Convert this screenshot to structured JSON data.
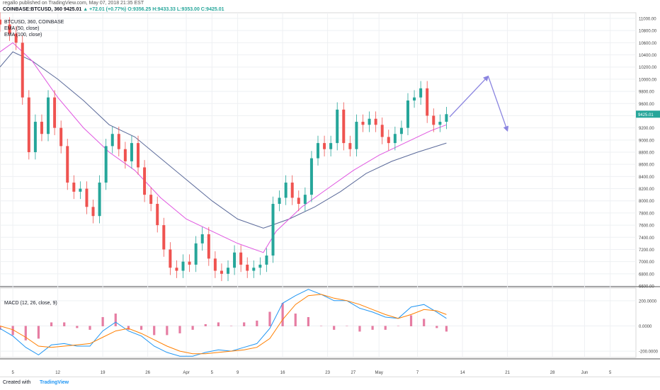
{
  "header": {
    "publisher": "regallo published on TradingView.com, May 07, 2018 21:35 EST",
    "symbol": "COINBASE:BTCUSD, 360",
    "last": "9425.01",
    "change": "▲ +72.01 (+0.77%)",
    "o": "O:9356.25",
    "h": "H:9433.33",
    "l": "L:9353.00",
    "c": "C:9425.01"
  },
  "legend": {
    "symbol": "BTCUSD, 360, COINBASE",
    "ema50": "EMA (50, close)",
    "ema100": "EMA (100, close)",
    "macd": "MACD (12, 26, close, 9)"
  },
  "footer": {
    "created": "Created with",
    "brand": "TradingView"
  },
  "colors": {
    "up": "#26a69a",
    "down": "#ef5350",
    "ema50": "#e056e0",
    "ema100": "#5b6a9a",
    "macd": "#2196f3",
    "signal": "#ff7f00",
    "hist": "#e05c8c",
    "arrow": "#8a84e0"
  },
  "chart_data": {
    "type": "candlestick",
    "price_axis": {
      "min": 6600,
      "max": 11000,
      "ticks": [
        "6600.00",
        "6800.00",
        "7000.00",
        "7200.00",
        "7400.00",
        "7600.00",
        "7800.00",
        "8000.00",
        "8200.00",
        "8400.00",
        "8600.00",
        "8800.00",
        "9000.00",
        "9200.00",
        "9400.00",
        "9600.00",
        "9800.00",
        "10000.00",
        "10200.00",
        "10400.00",
        "10600.00",
        "10800.00",
        "11000.00"
      ]
    },
    "macd_axis": {
      "min": -250,
      "max": 300,
      "ticks": [
        "-200.0000",
        "0.0000",
        "200.0000"
      ]
    },
    "x_ticks": [
      {
        "label": "5",
        "day": 5
      },
      {
        "label": "12",
        "day": 12
      },
      {
        "label": "19",
        "day": 19
      },
      {
        "label": "26",
        "day": 26
      },
      {
        "label": "Apr",
        "day": 32
      },
      {
        "label": "5",
        "day": 36
      },
      {
        "label": "9",
        "day": 40
      },
      {
        "label": "16",
        "day": 47
      },
      {
        "label": "23",
        "day": 54
      },
      {
        "label": "27",
        "day": 58
      },
      {
        "label": "May",
        "day": 62
      },
      {
        "label": "7",
        "day": 68
      },
      {
        "label": "14",
        "day": 75
      },
      {
        "label": "21",
        "day": 82
      },
      {
        "label": "28",
        "day": 89
      },
      {
        "label": "Jun",
        "day": 94
      },
      {
        "label": "5",
        "day": 98
      }
    ],
    "x_range": [
      3,
      102
    ],
    "close": [
      {
        "day": 3,
        "value": 10900
      },
      {
        "day": 4.5,
        "value": 10750
      },
      {
        "day": 5.5,
        "value": 10600
      },
      {
        "day": 6.5,
        "value": 9700
      },
      {
        "day": 7.5,
        "value": 8800
      },
      {
        "day": 8.5,
        "value": 9300
      },
      {
        "day": 9.5,
        "value": 9100
      },
      {
        "day": 10.5,
        "value": 9700
      },
      {
        "day": 11.5,
        "value": 9200
      },
      {
        "day": 12.5,
        "value": 8900
      },
      {
        "day": 13.5,
        "value": 8300
      },
      {
        "day": 14.5,
        "value": 8150
      },
      {
        "day": 15.5,
        "value": 8200
      },
      {
        "day": 16.5,
        "value": 7900
      },
      {
        "day": 17.5,
        "value": 7750
      },
      {
        "day": 18.5,
        "value": 8300
      },
      {
        "day": 19.5,
        "value": 8900
      },
      {
        "day": 20.5,
        "value": 9100
      },
      {
        "day": 21.5,
        "value": 8850
      },
      {
        "day": 22.5,
        "value": 8650
      },
      {
        "day": 23.5,
        "value": 8950
      },
      {
        "day": 24.5,
        "value": 8550
      },
      {
        "day": 25.5,
        "value": 8100
      },
      {
        "day": 26.5,
        "value": 7950
      },
      {
        "day": 27.5,
        "value": 7600
      },
      {
        "day": 28.5,
        "value": 7200
      },
      {
        "day": 29.5,
        "value": 6900
      },
      {
        "day": 30.5,
        "value": 6850
      },
      {
        "day": 31.5,
        "value": 7000
      },
      {
        "day": 32.5,
        "value": 6950
      },
      {
        "day": 33.5,
        "value": 7300
      },
      {
        "day": 34.5,
        "value": 7450
      },
      {
        "day": 35.5,
        "value": 7050
      },
      {
        "day": 36.5,
        "value": 6850
      },
      {
        "day": 37.5,
        "value": 6800
      },
      {
        "day": 38.5,
        "value": 6900
      },
      {
        "day": 39.5,
        "value": 7150
      },
      {
        "day": 40.5,
        "value": 6950
      },
      {
        "day": 41.5,
        "value": 6850
      },
      {
        "day": 42.5,
        "value": 6900
      },
      {
        "day": 43.5,
        "value": 6950
      },
      {
        "day": 44.5,
        "value": 7100
      },
      {
        "day": 45.5,
        "value": 7950
      },
      {
        "day": 46.5,
        "value": 8050
      },
      {
        "day": 47.5,
        "value": 8300
      },
      {
        "day": 48.5,
        "value": 8050
      },
      {
        "day": 49.5,
        "value": 7950
      },
      {
        "day": 50.5,
        "value": 8100
      },
      {
        "day": 51.5,
        "value": 8700
      },
      {
        "day": 52.5,
        "value": 8950
      },
      {
        "day": 53.5,
        "value": 8850
      },
      {
        "day": 54.5,
        "value": 8950
      },
      {
        "day": 55.5,
        "value": 9500
      },
      {
        "day": 56.5,
        "value": 8950
      },
      {
        "day": 57.5,
        "value": 8850
      },
      {
        "day": 58.5,
        "value": 9300
      },
      {
        "day": 59.5,
        "value": 9250
      },
      {
        "day": 60.5,
        "value": 9350
      },
      {
        "day": 61.5,
        "value": 9250
      },
      {
        "day": 62.5,
        "value": 9050
      },
      {
        "day": 63.5,
        "value": 8950
      },
      {
        "day": 64.5,
        "value": 9100
      },
      {
        "day": 65.5,
        "value": 9200
      },
      {
        "day": 66.5,
        "value": 9650
      },
      {
        "day": 67.5,
        "value": 9700
      },
      {
        "day": 68.5,
        "value": 9850
      },
      {
        "day": 69.5,
        "value": 9400
      },
      {
        "day": 70.5,
        "value": 9250
      },
      {
        "day": 71.5,
        "value": 9300
      },
      {
        "day": 72.5,
        "value": 9425
      }
    ],
    "ema50": [
      {
        "day": 3,
        "value": 10450
      },
      {
        "day": 5,
        "value": 10600
      },
      {
        "day": 8,
        "value": 10300
      },
      {
        "day": 12,
        "value": 9700
      },
      {
        "day": 16,
        "value": 9200
      },
      {
        "day": 20,
        "value": 8800
      },
      {
        "day": 24,
        "value": 8500
      },
      {
        "day": 28,
        "value": 8050
      },
      {
        "day": 32,
        "value": 7700
      },
      {
        "day": 36,
        "value": 7500
      },
      {
        "day": 40,
        "value": 7300
      },
      {
        "day": 44,
        "value": 7150
      },
      {
        "day": 46,
        "value": 7500
      },
      {
        "day": 50,
        "value": 7900
      },
      {
        "day": 54,
        "value": 8200
      },
      {
        "day": 58,
        "value": 8500
      },
      {
        "day": 62,
        "value": 8750
      },
      {
        "day": 66,
        "value": 8950
      },
      {
        "day": 70,
        "value": 9150
      },
      {
        "day": 72.5,
        "value": 9250
      }
    ],
    "ema100": [
      {
        "day": 3,
        "value": 10200
      },
      {
        "day": 5,
        "value": 10450
      },
      {
        "day": 8,
        "value": 10300
      },
      {
        "day": 12,
        "value": 10000
      },
      {
        "day": 16,
        "value": 9650
      },
      {
        "day": 20,
        "value": 9250
      },
      {
        "day": 24,
        "value": 9050
      },
      {
        "day": 28,
        "value": 8700
      },
      {
        "day": 32,
        "value": 8350
      },
      {
        "day": 36,
        "value": 8000
      },
      {
        "day": 40,
        "value": 7700
      },
      {
        "day": 44,
        "value": 7550
      },
      {
        "day": 48,
        "value": 7700
      },
      {
        "day": 52,
        "value": 7900
      },
      {
        "day": 56,
        "value": 8150
      },
      {
        "day": 60,
        "value": 8450
      },
      {
        "day": 64,
        "value": 8650
      },
      {
        "day": 68,
        "value": 8800
      },
      {
        "day": 72.5,
        "value": 8950
      }
    ],
    "macd": [
      {
        "day": 3,
        "value": -20
      },
      {
        "day": 5,
        "value": -80
      },
      {
        "day": 7,
        "value": -170
      },
      {
        "day": 9,
        "value": -230
      },
      {
        "day": 11,
        "value": -150
      },
      {
        "day": 13,
        "value": -140
      },
      {
        "day": 15,
        "value": -160
      },
      {
        "day": 17,
        "value": -160
      },
      {
        "day": 19,
        "value": -40
      },
      {
        "day": 21,
        "value": 30
      },
      {
        "day": 23,
        "value": -40
      },
      {
        "day": 25,
        "value": -80
      },
      {
        "day": 27,
        "value": -160
      },
      {
        "day": 29,
        "value": -210
      },
      {
        "day": 31,
        "value": -240
      },
      {
        "day": 33,
        "value": -240
      },
      {
        "day": 35,
        "value": -210
      },
      {
        "day": 37,
        "value": -190
      },
      {
        "day": 39,
        "value": -200
      },
      {
        "day": 41,
        "value": -170
      },
      {
        "day": 43,
        "value": -140
      },
      {
        "day": 45,
        "value": -20
      },
      {
        "day": 47,
        "value": 180
      },
      {
        "day": 49,
        "value": 240
      },
      {
        "day": 51,
        "value": 290
      },
      {
        "day": 53,
        "value": 250
      },
      {
        "day": 55,
        "value": 200
      },
      {
        "day": 57,
        "value": 200
      },
      {
        "day": 59,
        "value": 140
      },
      {
        "day": 61,
        "value": 110
      },
      {
        "day": 63,
        "value": 70
      },
      {
        "day": 65,
        "value": 60
      },
      {
        "day": 67,
        "value": 150
      },
      {
        "day": 69,
        "value": 170
      },
      {
        "day": 71,
        "value": 110
      },
      {
        "day": 72.5,
        "value": 60
      }
    ],
    "signal": [
      {
        "day": 3,
        "value": 0
      },
      {
        "day": 5,
        "value": -30
      },
      {
        "day": 7,
        "value": -90
      },
      {
        "day": 9,
        "value": -160
      },
      {
        "day": 11,
        "value": -170
      },
      {
        "day": 13,
        "value": -160
      },
      {
        "day": 15,
        "value": -150
      },
      {
        "day": 17,
        "value": -140
      },
      {
        "day": 19,
        "value": -90
      },
      {
        "day": 21,
        "value": -40
      },
      {
        "day": 23,
        "value": -20
      },
      {
        "day": 25,
        "value": -60
      },
      {
        "day": 27,
        "value": -110
      },
      {
        "day": 29,
        "value": -160
      },
      {
        "day": 31,
        "value": -200
      },
      {
        "day": 33,
        "value": -220
      },
      {
        "day": 35,
        "value": -220
      },
      {
        "day": 37,
        "value": -210
      },
      {
        "day": 39,
        "value": -200
      },
      {
        "day": 41,
        "value": -190
      },
      {
        "day": 43,
        "value": -170
      },
      {
        "day": 45,
        "value": -100
      },
      {
        "day": 47,
        "value": 50
      },
      {
        "day": 49,
        "value": 170
      },
      {
        "day": 51,
        "value": 240
      },
      {
        "day": 53,
        "value": 250
      },
      {
        "day": 55,
        "value": 220
      },
      {
        "day": 57,
        "value": 200
      },
      {
        "day": 59,
        "value": 170
      },
      {
        "day": 61,
        "value": 130
      },
      {
        "day": 63,
        "value": 90
      },
      {
        "day": 65,
        "value": 60
      },
      {
        "day": 67,
        "value": 90
      },
      {
        "day": 69,
        "value": 130
      },
      {
        "day": 71,
        "value": 120
      },
      {
        "day": 72.5,
        "value": 90
      }
    ],
    "projection": [
      {
        "day": 73,
        "value": 9380
      },
      {
        "day": 79,
        "value": 10050
      },
      {
        "day": 82,
        "value": 9150
      }
    ],
    "last_price": 9425.01
  }
}
